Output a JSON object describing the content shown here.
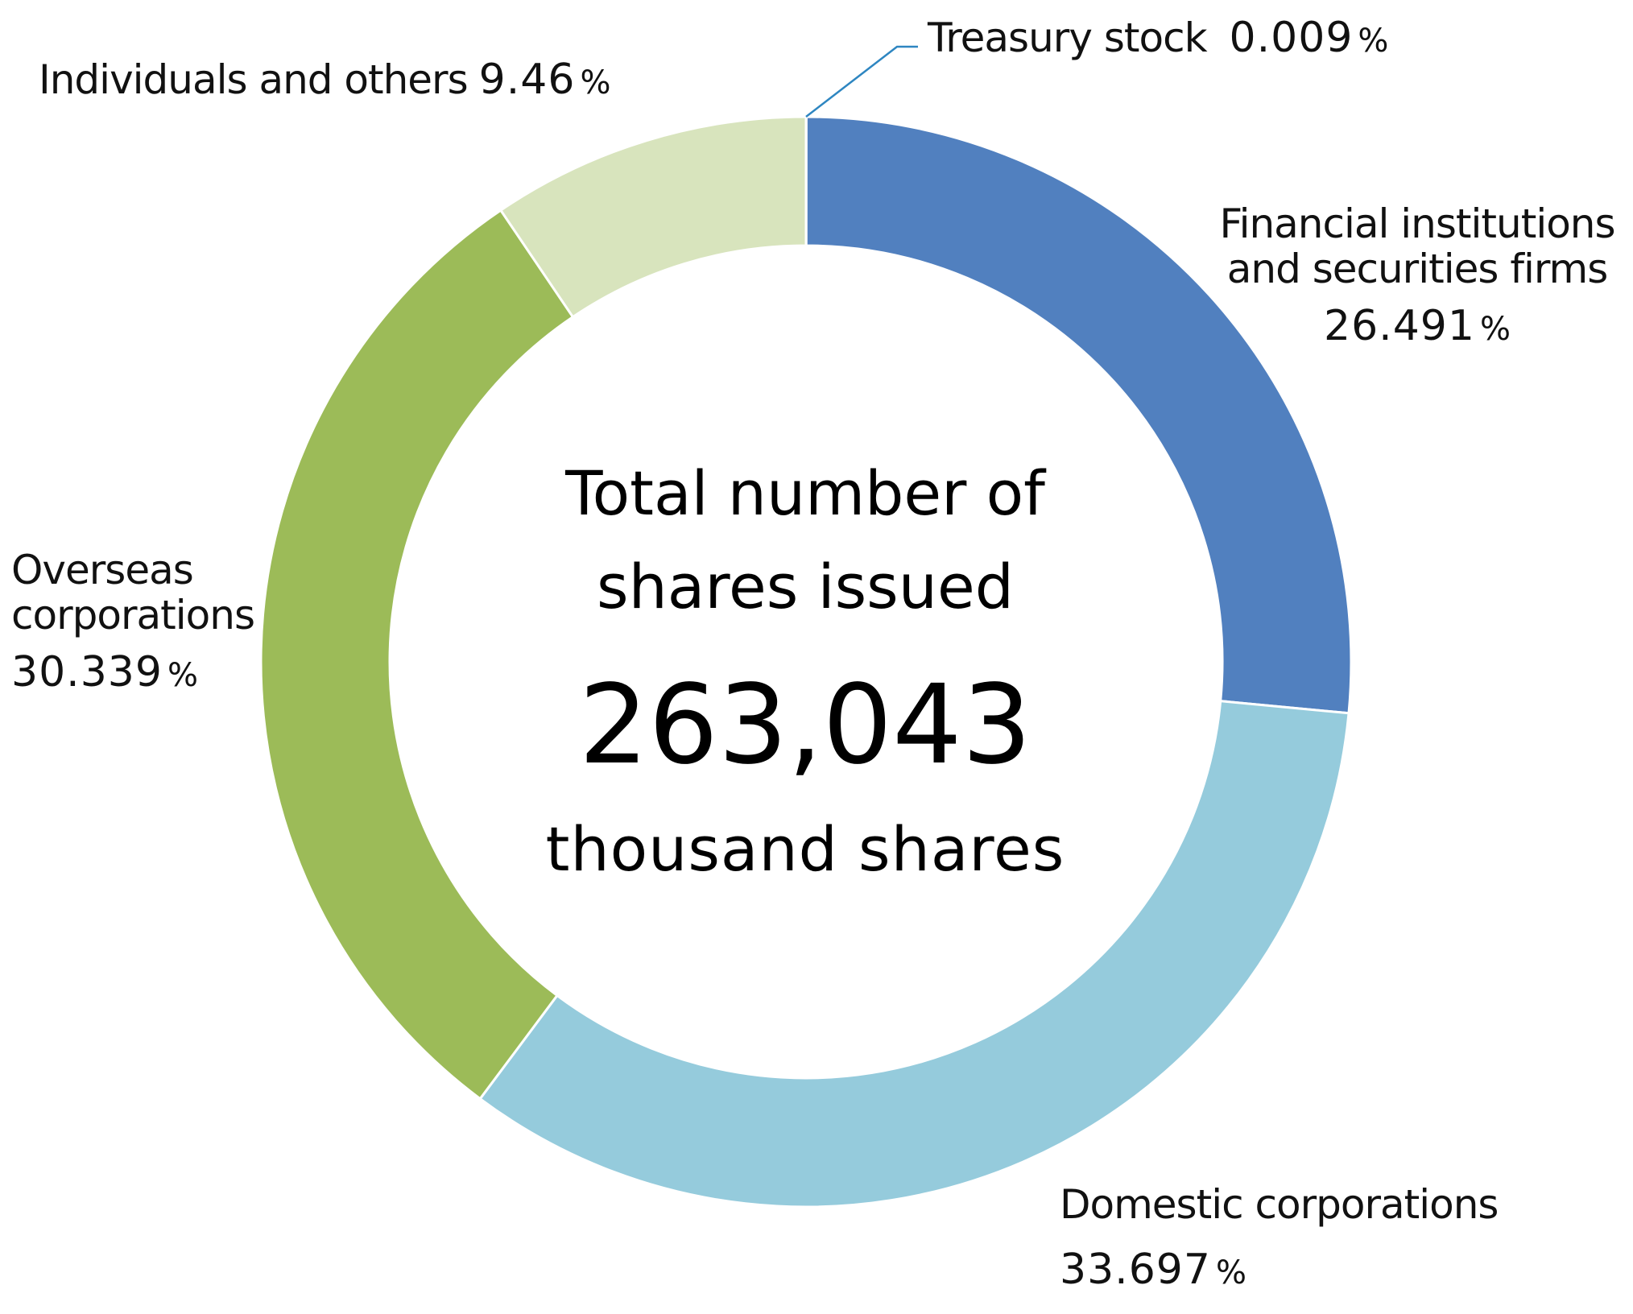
{
  "chart_data": {
    "type": "pie",
    "variant": "donut",
    "center_text": {
      "line1": "Total number of",
      "line2": "shares issued",
      "value": "263,043",
      "unit": "thousand shares"
    },
    "slices": [
      {
        "label": "Treasury stock",
        "label_lines": [
          "Treasury stock"
        ],
        "value": 0.009,
        "value_text": "0.009",
        "color": "#2e86c1"
      },
      {
        "label": "Financial institutions and securities firms",
        "label_lines": [
          "Financial institutions",
          "and securities firms"
        ],
        "value": 26.491,
        "value_text": "26.491",
        "color": "#5180bf"
      },
      {
        "label": "Domestic corporations",
        "label_lines": [
          "Domestic corporations"
        ],
        "value": 33.697,
        "value_text": "33.697",
        "color": "#95cbdc"
      },
      {
        "label": "Overseas corporations",
        "label_lines": [
          "Overseas",
          "corporations"
        ],
        "value": 30.339,
        "value_text": "30.339",
        "color": "#9cbb58"
      },
      {
        "label": "Individuals and others",
        "label_lines": [
          "Individuals and others"
        ],
        "value": 9.46,
        "value_text": "9.46",
        "color": "#d8e4bd"
      }
    ],
    "value_unit": "%",
    "leader_line_color": "#2e86c1"
  }
}
